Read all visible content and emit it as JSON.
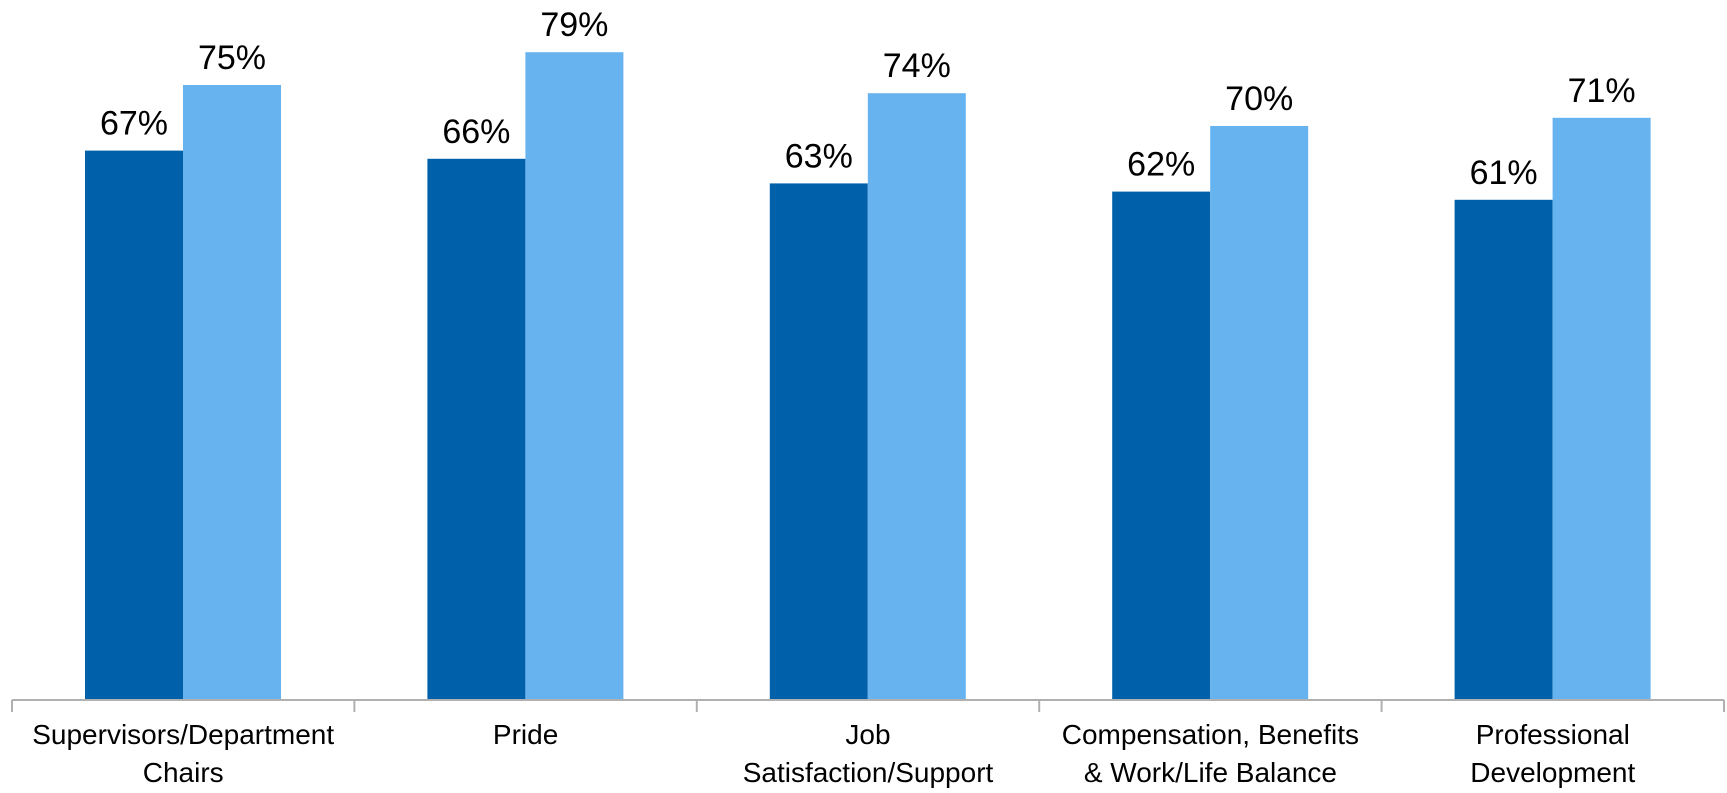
{
  "chart_data": {
    "type": "bar",
    "title": "",
    "xlabel": "",
    "ylabel": "",
    "categories": [
      [
        "Supervisors/Department",
        "Chairs"
      ],
      [
        "Pride"
      ],
      [
        "Job",
        "Satisfaction/Support"
      ],
      [
        "Compensation, Benefits",
        "& Work/Life Balance"
      ],
      [
        "Professional",
        "Development"
      ]
    ],
    "series": [
      {
        "values": [
          67,
          66,
          63,
          62,
          61
        ],
        "color": "#0060AA"
      },
      {
        "values": [
          75,
          79,
          74,
          70,
          71
        ],
        "color": "#66B3F0"
      }
    ],
    "value_suffix": "%",
    "ylim": [
      0,
      85
    ],
    "grid": false,
    "legend": "none",
    "axis_color": "#B0B0B0"
  }
}
